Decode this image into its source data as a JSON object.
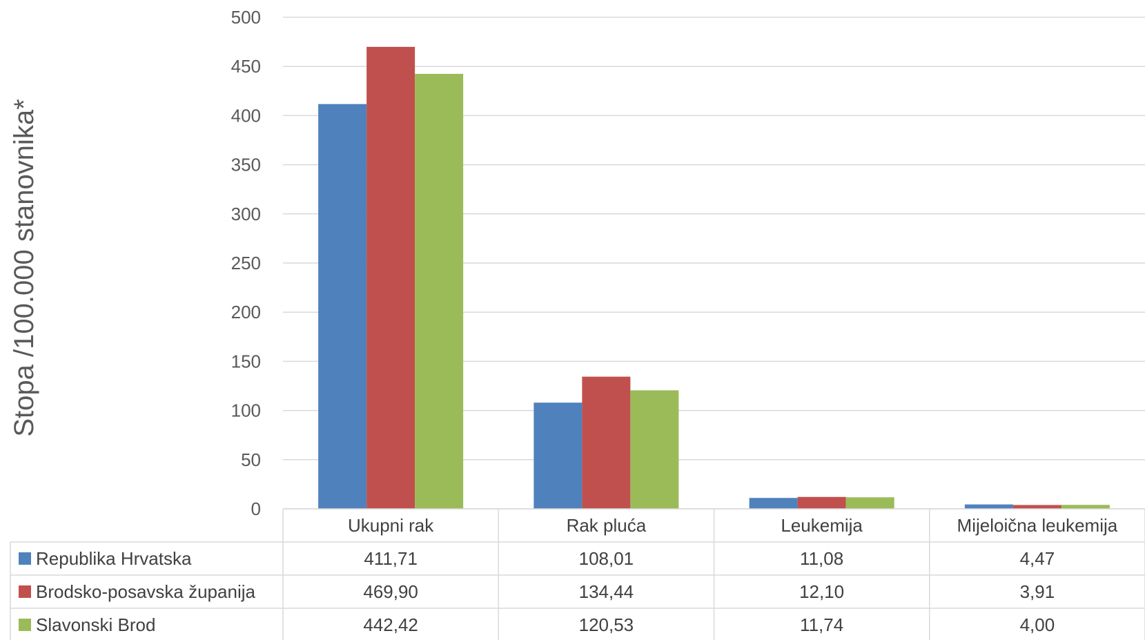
{
  "chart_data": {
    "type": "bar",
    "title": "",
    "xlabel": "",
    "ylabel": "Stopa /100.000 stanovnika*",
    "ylim": [
      0,
      500
    ],
    "yticks": [
      0,
      50,
      100,
      150,
      200,
      250,
      300,
      350,
      400,
      450,
      500
    ],
    "grid": true,
    "legend": "data-table-left",
    "categories": [
      "Ukupni rak",
      "Rak pluća",
      "Leukemija",
      "Mijeloična leukemija"
    ],
    "series": [
      {
        "name": "Republika Hrvatska",
        "color": "#4F81BD",
        "values": [
          411.71,
          108.01,
          11.08,
          4.47
        ],
        "labels": [
          "411,71",
          "108,01",
          "11,08",
          "4,47"
        ]
      },
      {
        "name": "Brodsko-posavska županija",
        "color": "#C0504D",
        "values": [
          469.9,
          134.44,
          12.1,
          3.91
        ],
        "labels": [
          "469,90",
          "134,44",
          "12,10",
          "3,91"
        ]
      },
      {
        "name": "Slavonski Brod",
        "color": "#9BBB59",
        "values": [
          442.42,
          120.53,
          11.74,
          4.0
        ],
        "labels": [
          "442,42",
          "120,53",
          "11,74",
          "4,00"
        ]
      }
    ]
  }
}
